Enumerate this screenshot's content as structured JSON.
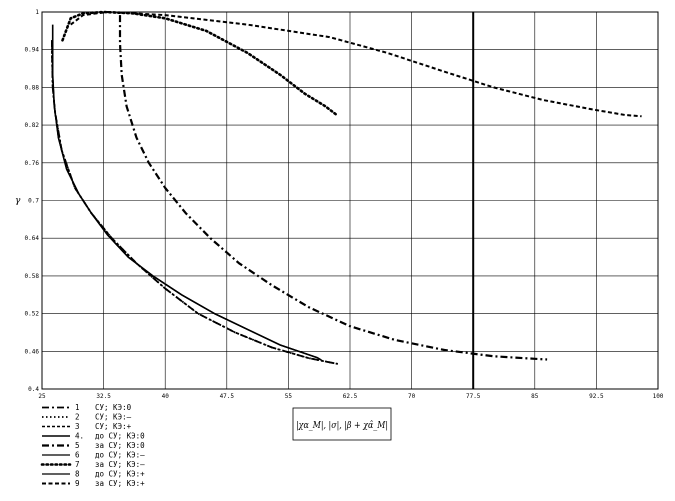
{
  "chart_data": {
    "type": "line",
    "xlabel": "|χα_M|, |σ|, |β + χα̂_M|",
    "ylabel": "γ",
    "xlim": [
      25,
      100
    ],
    "ylim": [
      0.4,
      1.0
    ],
    "grid": true,
    "legend_placement": "bottom-left (below plot)",
    "x_ticks": [
      "25",
      "32.5",
      "40",
      "47.5",
      "55",
      "62.5",
      "70",
      "77.5",
      "85",
      "92.5",
      "100"
    ],
    "y_ticks": [
      "0.4",
      "0.46",
      "0.52",
      "0.58",
      "0.64",
      "0.7",
      "0.76",
      "0.82",
      "0.88",
      "0.94",
      "1"
    ],
    "vertical_line_x": 77.5,
    "legend": [
      {
        "num": "1",
        "text": "   СУ; КЭ:0"
      },
      {
        "num": "2",
        "text": "   СУ; КЭ:–"
      },
      {
        "num": "3",
        "text": "   СУ; КЭ:+"
      },
      {
        "num": "4.",
        "text": "до СУ; КЭ:0"
      },
      {
        "num": "5",
        "text": "за СУ; КЭ:0"
      },
      {
        "num": "6",
        "text": "до СУ; КЭ:–"
      },
      {
        "num": "7",
        "text": "за СУ; КЭ:–"
      },
      {
        "num": "8",
        "text": "до СУ; КЭ:+"
      },
      {
        "num": "9",
        "text": "за СУ; КЭ:+"
      }
    ],
    "series": [
      {
        "name": "1",
        "style": "dashdot",
        "points": [
          [
            26.2,
            0.955
          ],
          [
            26.2,
            0.94
          ],
          [
            26.3,
            0.88
          ],
          [
            26.6,
            0.84
          ],
          [
            27.4,
            0.78
          ],
          [
            29,
            0.72
          ],
          [
            31,
            0.68
          ],
          [
            33.5,
            0.64
          ],
          [
            36.5,
            0.6
          ],
          [
            40,
            0.56
          ],
          [
            44,
            0.52
          ],
          [
            48.5,
            0.49
          ],
          [
            53,
            0.466
          ],
          [
            57.5,
            0.449
          ],
          [
            61,
            0.44
          ]
        ]
      },
      {
        "name": "2",
        "style": "dotted",
        "points": [
          [
            26.2,
            0.955
          ],
          [
            26.2,
            0.94
          ],
          [
            26.3,
            0.88
          ],
          [
            26.6,
            0.84
          ],
          [
            27.4,
            0.78
          ],
          [
            29,
            0.72
          ],
          [
            31,
            0.68
          ],
          [
            33.5,
            0.64
          ],
          [
            36.5,
            0.6
          ],
          [
            40,
            0.56
          ],
          [
            44,
            0.52
          ],
          [
            48.5,
            0.49
          ],
          [
            53,
            0.466
          ],
          [
            57.5,
            0.449
          ],
          [
            61,
            0.44
          ]
        ]
      },
      {
        "name": "3",
        "style": "dashed",
        "points": [
          [
            26.2,
            0.955
          ],
          [
            26.2,
            0.94
          ],
          [
            26.3,
            0.88
          ],
          [
            26.6,
            0.84
          ],
          [
            27.4,
            0.78
          ],
          [
            29,
            0.72
          ],
          [
            31,
            0.68
          ],
          [
            33.5,
            0.64
          ],
          [
            36.5,
            0.6
          ],
          [
            40,
            0.56
          ],
          [
            44,
            0.52
          ],
          [
            48.5,
            0.49
          ],
          [
            53,
            0.466
          ],
          [
            57.5,
            0.449
          ],
          [
            61,
            0.44
          ]
        ]
      },
      {
        "name": "4. до СУ; КЭ:0",
        "style": "solid-thick",
        "points": [
          [
            26.3,
            0.98
          ],
          [
            26.3,
            0.9
          ],
          [
            26.5,
            0.85
          ],
          [
            27,
            0.8
          ],
          [
            28,
            0.75
          ],
          [
            29.5,
            0.71
          ],
          [
            31,
            0.68
          ],
          [
            33,
            0.645
          ],
          [
            35.5,
            0.61
          ],
          [
            38.5,
            0.58
          ],
          [
            42,
            0.55
          ],
          [
            46,
            0.52
          ],
          [
            50,
            0.495
          ],
          [
            54,
            0.47
          ],
          [
            58.5,
            0.45
          ],
          [
            59,
            0.446
          ]
        ]
      },
      {
        "name": "5 за СУ; КЭ:0",
        "style": "dashdot-thick",
        "points": [
          [
            34.5,
            0.995
          ],
          [
            34.5,
            0.95
          ],
          [
            34.7,
            0.9
          ],
          [
            35.3,
            0.85
          ],
          [
            36.5,
            0.8
          ],
          [
            38,
            0.76
          ],
          [
            40,
            0.72
          ],
          [
            42.5,
            0.68
          ],
          [
            45.5,
            0.64
          ],
          [
            49,
            0.6
          ],
          [
            53,
            0.565
          ],
          [
            57.5,
            0.53
          ],
          [
            62.5,
            0.5
          ],
          [
            68,
            0.478
          ],
          [
            74,
            0.462
          ],
          [
            80,
            0.452
          ],
          [
            85,
            0.448
          ],
          [
            86.5,
            0.447
          ]
        ]
      },
      {
        "name": "6 до СУ; КЭ:–",
        "style": "solid",
        "points": [
          [
            26.3,
            0.97
          ],
          [
            26.3,
            0.9
          ],
          [
            26.5,
            0.85
          ],
          [
            27,
            0.8
          ],
          [
            28,
            0.75
          ],
          [
            29.5,
            0.71
          ],
          [
            31,
            0.68
          ],
          [
            33,
            0.645
          ],
          [
            35.5,
            0.61
          ],
          [
            38.5,
            0.58
          ],
          [
            42,
            0.55
          ],
          [
            46,
            0.52
          ],
          [
            50,
            0.495
          ],
          [
            54,
            0.47
          ],
          [
            58.5,
            0.45
          ],
          [
            59,
            0.446
          ]
        ]
      },
      {
        "name": "7 за СУ; КЭ:–",
        "style": "dotted-thick",
        "points": [
          [
            27.5,
            0.955
          ],
          [
            28.5,
            0.99
          ],
          [
            30,
            0.998
          ],
          [
            32.5,
            1.0
          ],
          [
            36,
            0.998
          ],
          [
            40,
            0.99
          ],
          [
            45,
            0.97
          ],
          [
            50,
            0.935
          ],
          [
            54,
            0.9
          ],
          [
            57,
            0.87
          ],
          [
            59.5,
            0.85
          ],
          [
            61,
            0.835
          ]
        ]
      },
      {
        "name": "8 до СУ; КЭ:+",
        "style": "solid",
        "points": [
          [
            26.3,
            0.97
          ],
          [
            26.3,
            0.9
          ],
          [
            26.5,
            0.85
          ],
          [
            27,
            0.8
          ],
          [
            28,
            0.75
          ],
          [
            29.5,
            0.71
          ],
          [
            31,
            0.68
          ],
          [
            33,
            0.645
          ],
          [
            35.5,
            0.61
          ],
          [
            38.5,
            0.58
          ],
          [
            42,
            0.55
          ],
          [
            46,
            0.52
          ],
          [
            50,
            0.495
          ],
          [
            54,
            0.47
          ],
          [
            58.5,
            0.45
          ],
          [
            59,
            0.446
          ]
        ]
      },
      {
        "name": "9 за СУ; КЭ:+",
        "style": "dashed-thick",
        "points": [
          [
            28.5,
            0.98
          ],
          [
            30,
            0.995
          ],
          [
            33,
            1.0
          ],
          [
            40,
            0.995
          ],
          [
            50,
            0.98
          ],
          [
            60,
            0.96
          ],
          [
            67,
            0.935
          ],
          [
            74,
            0.905
          ],
          [
            80,
            0.88
          ],
          [
            86,
            0.86
          ],
          [
            92,
            0.845
          ],
          [
            96,
            0.836
          ],
          [
            98,
            0.834
          ]
        ]
      }
    ]
  }
}
